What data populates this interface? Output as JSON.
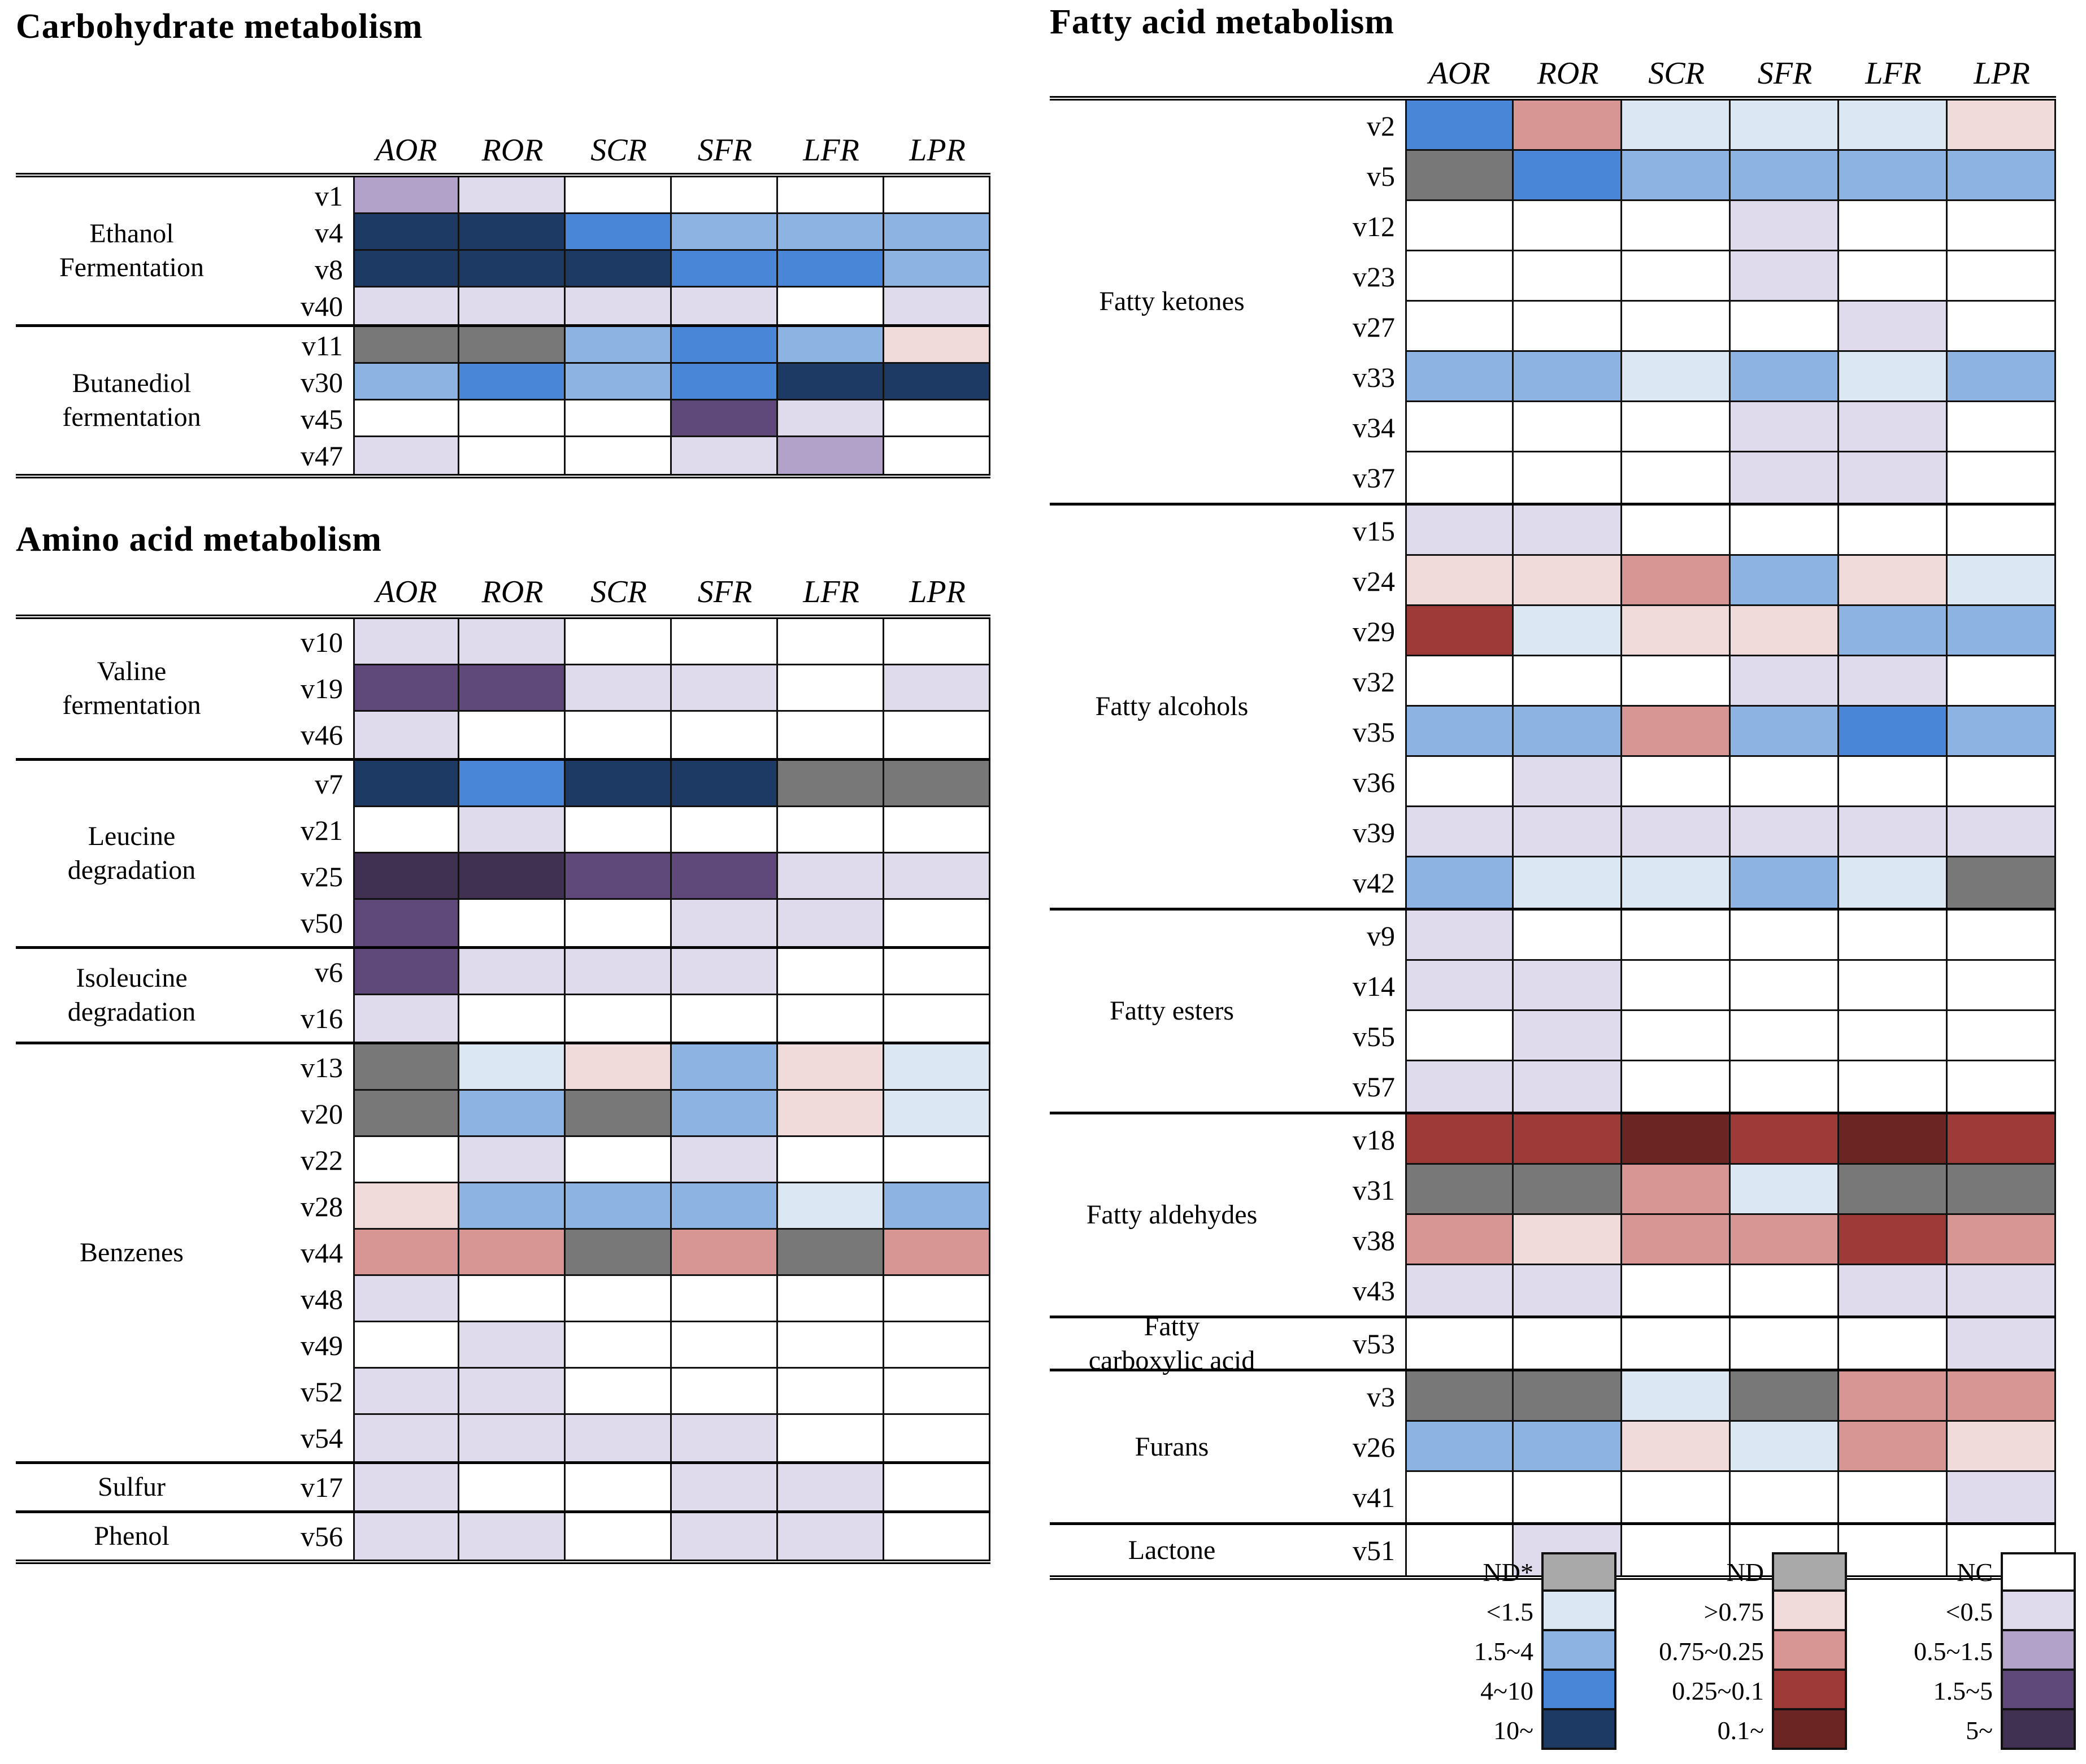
{
  "chart_data": {
    "type": "heatmap",
    "columns": [
      "AOR",
      "ROR",
      "SCR",
      "SFR",
      "LFR",
      "LPR"
    ],
    "palette": {
      "w": "#ffffff",
      "nd": "#787878",
      "ndl": "#a9a9a9",
      "b1": "#dbe8f4",
      "b2": "#8db3e2",
      "b3": "#4a86d8",
      "b4": "#1c3a63",
      "r1": "#f1dbda",
      "r2": "#d79693",
      "r3": "#9e3a37",
      "r4": "#6b2523",
      "p1": "#e0dbec",
      "p2": "#b2a2ca",
      "p3": "#5f497a",
      "p4": "#403152"
    },
    "panels": [
      {
        "id": "carb",
        "title": "Carbohydrate metabolism",
        "groups": [
          {
            "label_lines": [
              "Ethanol",
              "Fermentation"
            ],
            "rows": [
              {
                "id": "v1",
                "cells": [
                  "p2",
                  "p1",
                  "w",
                  "w",
                  "w",
                  "w"
                ]
              },
              {
                "id": "v4",
                "cells": [
                  "b4",
                  "b4",
                  "b3",
                  "b2",
                  "b2",
                  "b2"
                ]
              },
              {
                "id": "v8",
                "cells": [
                  "b4",
                  "b4",
                  "b4",
                  "b3",
                  "b3",
                  "b2"
                ]
              },
              {
                "id": "v40",
                "cells": [
                  "p1",
                  "p1",
                  "p1",
                  "p1",
                  "w",
                  "p1"
                ]
              }
            ]
          },
          {
            "label_lines": [
              "Butanediol",
              "fermentation"
            ],
            "rows": [
              {
                "id": "v11",
                "cells": [
                  "nd",
                  "nd",
                  "b2",
                  "b3",
                  "b2",
                  "r1"
                ]
              },
              {
                "id": "v30",
                "cells": [
                  "b2",
                  "b3",
                  "b2",
                  "b3",
                  "b4",
                  "b4"
                ]
              },
              {
                "id": "v45",
                "cells": [
                  "w",
                  "w",
                  "w",
                  "p3",
                  "p1",
                  "w"
                ]
              },
              {
                "id": "v47",
                "cells": [
                  "p1",
                  "w",
                  "w",
                  "p1",
                  "p2",
                  "w"
                ]
              }
            ]
          }
        ]
      },
      {
        "id": "amino",
        "title": "Amino acid metabolism",
        "groups": [
          {
            "label_lines": [
              "Valine",
              "fermentation"
            ],
            "rows": [
              {
                "id": "v10",
                "cells": [
                  "p1",
                  "p1",
                  "w",
                  "w",
                  "w",
                  "w"
                ]
              },
              {
                "id": "v19",
                "cells": [
                  "p3",
                  "p3",
                  "p1",
                  "p1",
                  "w",
                  "p1"
                ]
              },
              {
                "id": "v46",
                "cells": [
                  "p1",
                  "w",
                  "w",
                  "w",
                  "w",
                  "w"
                ]
              }
            ]
          },
          {
            "label_lines": [
              "Leucine",
              "degradation"
            ],
            "rows": [
              {
                "id": "v7",
                "cells": [
                  "b4",
                  "b3",
                  "b4",
                  "b4",
                  "nd",
                  "nd"
                ]
              },
              {
                "id": "v21",
                "cells": [
                  "w",
                  "p1",
                  "w",
                  "w",
                  "w",
                  "w"
                ]
              },
              {
                "id": "v25",
                "cells": [
                  "p4",
                  "p4",
                  "p3",
                  "p3",
                  "p1",
                  "p1"
                ]
              },
              {
                "id": "v50",
                "cells": [
                  "p3",
                  "w",
                  "w",
                  "p1",
                  "p1",
                  "w"
                ]
              }
            ]
          },
          {
            "label_lines": [
              "Isoleucine",
              "degradation"
            ],
            "rows": [
              {
                "id": "v6",
                "cells": [
                  "p3",
                  "p1",
                  "p1",
                  "p1",
                  "w",
                  "w"
                ]
              },
              {
                "id": "v16",
                "cells": [
                  "p1",
                  "w",
                  "w",
                  "w",
                  "w",
                  "w"
                ]
              }
            ]
          },
          {
            "label_lines": [
              "Benzenes"
            ],
            "rows": [
              {
                "id": "v13",
                "cells": [
                  "nd",
                  "b1",
                  "r1",
                  "b2",
                  "r1",
                  "b1"
                ]
              },
              {
                "id": "v20",
                "cells": [
                  "nd",
                  "b2",
                  "nd",
                  "b2",
                  "r1",
                  "b1"
                ]
              },
              {
                "id": "v22",
                "cells": [
                  "w",
                  "p1",
                  "w",
                  "p1",
                  "w",
                  "w"
                ]
              },
              {
                "id": "v28",
                "cells": [
                  "r1",
                  "b2",
                  "b2",
                  "b2",
                  "b1",
                  "b2"
                ]
              },
              {
                "id": "v44",
                "cells": [
                  "r2",
                  "r2",
                  "nd",
                  "r2",
                  "nd",
                  "r2"
                ]
              },
              {
                "id": "v48",
                "cells": [
                  "p1",
                  "w",
                  "w",
                  "w",
                  "w",
                  "w"
                ]
              },
              {
                "id": "v49",
                "cells": [
                  "w",
                  "p1",
                  "w",
                  "w",
                  "w",
                  "w"
                ]
              },
              {
                "id": "v52",
                "cells": [
                  "p1",
                  "p1",
                  "w",
                  "w",
                  "w",
                  "w"
                ]
              },
              {
                "id": "v54",
                "cells": [
                  "p1",
                  "p1",
                  "p1",
                  "p1",
                  "w",
                  "w"
                ]
              }
            ]
          },
          {
            "label_lines": [
              "Sulfur"
            ],
            "rows": [
              {
                "id": "v17",
                "cells": [
                  "p1",
                  "w",
                  "w",
                  "p1",
                  "p1",
                  "w"
                ]
              }
            ]
          },
          {
            "label_lines": [
              "Phenol"
            ],
            "rows": [
              {
                "id": "v56",
                "cells": [
                  "p1",
                  "p1",
                  "w",
                  "p1",
                  "p1",
                  "w"
                ]
              }
            ]
          }
        ]
      },
      {
        "id": "fatty",
        "title": "Fatty acid metabolism",
        "groups": [
          {
            "label_lines": [
              "Fatty ketones"
            ],
            "rows": [
              {
                "id": "v2",
                "cells": [
                  "b3",
                  "r2",
                  "b1",
                  "b1",
                  "b1",
                  "r1"
                ]
              },
              {
                "id": "v5",
                "cells": [
                  "nd",
                  "b3",
                  "b2",
                  "b2",
                  "b2",
                  "b2"
                ]
              },
              {
                "id": "v12",
                "cells": [
                  "w",
                  "w",
                  "w",
                  "p1",
                  "w",
                  "w"
                ]
              },
              {
                "id": "v23",
                "cells": [
                  "w",
                  "w",
                  "w",
                  "p1",
                  "w",
                  "w"
                ]
              },
              {
                "id": "v27",
                "cells": [
                  "w",
                  "w",
                  "w",
                  "w",
                  "p1",
                  "w"
                ]
              },
              {
                "id": "v33",
                "cells": [
                  "b2",
                  "b2",
                  "b1",
                  "b2",
                  "b1",
                  "b2"
                ]
              },
              {
                "id": "v34",
                "cells": [
                  "w",
                  "w",
                  "w",
                  "p1",
                  "p1",
                  "w"
                ]
              },
              {
                "id": "v37",
                "cells": [
                  "w",
                  "w",
                  "w",
                  "p1",
                  "p1",
                  "w"
                ]
              }
            ]
          },
          {
            "label_lines": [
              "Fatty alcohols"
            ],
            "rows": [
              {
                "id": "v15",
                "cells": [
                  "p1",
                  "p1",
                  "w",
                  "w",
                  "w",
                  "w"
                ]
              },
              {
                "id": "v24",
                "cells": [
                  "r1",
                  "r1",
                  "r2",
                  "b2",
                  "r1",
                  "b1"
                ]
              },
              {
                "id": "v29",
                "cells": [
                  "r3",
                  "b1",
                  "r1",
                  "r1",
                  "b2",
                  "b2"
                ]
              },
              {
                "id": "v32",
                "cells": [
                  "w",
                  "w",
                  "w",
                  "p1",
                  "p1",
                  "w"
                ]
              },
              {
                "id": "v35",
                "cells": [
                  "b2",
                  "b2",
                  "r2",
                  "b2",
                  "b3",
                  "b2"
                ]
              },
              {
                "id": "v36",
                "cells": [
                  "w",
                  "p1",
                  "w",
                  "w",
                  "w",
                  "w"
                ]
              },
              {
                "id": "v39",
                "cells": [
                  "p1",
                  "p1",
                  "p1",
                  "p1",
                  "p1",
                  "p1"
                ]
              },
              {
                "id": "v42",
                "cells": [
                  "b2",
                  "b1",
                  "b1",
                  "b2",
                  "b1",
                  "nd"
                ]
              }
            ]
          },
          {
            "label_lines": [
              "Fatty esters"
            ],
            "rows": [
              {
                "id": "v9",
                "cells": [
                  "p1",
                  "w",
                  "w",
                  "w",
                  "w",
                  "w"
                ]
              },
              {
                "id": "v14",
                "cells": [
                  "p1",
                  "p1",
                  "w",
                  "w",
                  "w",
                  "w"
                ]
              },
              {
                "id": "v55",
                "cells": [
                  "w",
                  "p1",
                  "w",
                  "w",
                  "w",
                  "w"
                ]
              },
              {
                "id": "v57",
                "cells": [
                  "p1",
                  "p1",
                  "w",
                  "w",
                  "w",
                  "w"
                ]
              }
            ]
          },
          {
            "label_lines": [
              "Fatty aldehydes"
            ],
            "rows": [
              {
                "id": "v18",
                "cells": [
                  "r3",
                  "r3",
                  "r4",
                  "r3",
                  "r4",
                  "r3"
                ]
              },
              {
                "id": "v31",
                "cells": [
                  "nd",
                  "nd",
                  "r2",
                  "b1",
                  "nd",
                  "nd"
                ]
              },
              {
                "id": "v38",
                "cells": [
                  "r2",
                  "r1",
                  "r2",
                  "r2",
                  "r3",
                  "r2"
                ]
              },
              {
                "id": "v43",
                "cells": [
                  "p1",
                  "p1",
                  "w",
                  "w",
                  "p1",
                  "p1"
                ]
              }
            ]
          },
          {
            "label_lines": [
              "Fatty",
              "carboxylic acid"
            ],
            "rows": [
              {
                "id": "v53",
                "cells": [
                  "w",
                  "w",
                  "w",
                  "w",
                  "w",
                  "p1"
                ]
              }
            ]
          },
          {
            "label_lines": [
              "Furans"
            ],
            "rows": [
              {
                "id": "v3",
                "cells": [
                  "nd",
                  "nd",
                  "b1",
                  "nd",
                  "r2",
                  "r2"
                ]
              },
              {
                "id": "v26",
                "cells": [
                  "b2",
                  "b2",
                  "r1",
                  "b1",
                  "r2",
                  "r1"
                ]
              },
              {
                "id": "v41",
                "cells": [
                  "w",
                  "w",
                  "w",
                  "w",
                  "w",
                  "p1"
                ]
              }
            ]
          },
          {
            "label_lines": [
              "Lactone"
            ],
            "rows": [
              {
                "id": "v51",
                "cells": [
                  "w",
                  "p1",
                  "w",
                  "w",
                  "w",
                  "w"
                ]
              }
            ]
          }
        ]
      }
    ],
    "legend": {
      "scales": [
        {
          "name": "blue-scale",
          "entries": [
            {
              "label": "ND*",
              "color": "ndl"
            },
            {
              "label": "<1.5",
              "color": "b1"
            },
            {
              "label": "1.5~4",
              "color": "b2"
            },
            {
              "label": "4~10",
              "color": "b3"
            },
            {
              "label": "10~",
              "color": "b4"
            }
          ]
        },
        {
          "name": "red-scale",
          "entries": [
            {
              "label": "ND",
              "color": "ndl"
            },
            {
              "label": ">0.75",
              "color": "r1"
            },
            {
              "label": "0.75~0.25",
              "color": "r2"
            },
            {
              "label": "0.25~0.1",
              "color": "r3"
            },
            {
              "label": "0.1~",
              "color": "r4"
            }
          ]
        },
        {
          "name": "purple-scale",
          "entries": [
            {
              "label": "NC",
              "color": "w"
            },
            {
              "label": "<0.5",
              "color": "p1"
            },
            {
              "label": "0.5~1.5",
              "color": "p2"
            },
            {
              "label": "1.5~5",
              "color": "p3"
            },
            {
              "label": "5~",
              "color": "p4"
            }
          ]
        }
      ]
    }
  }
}
